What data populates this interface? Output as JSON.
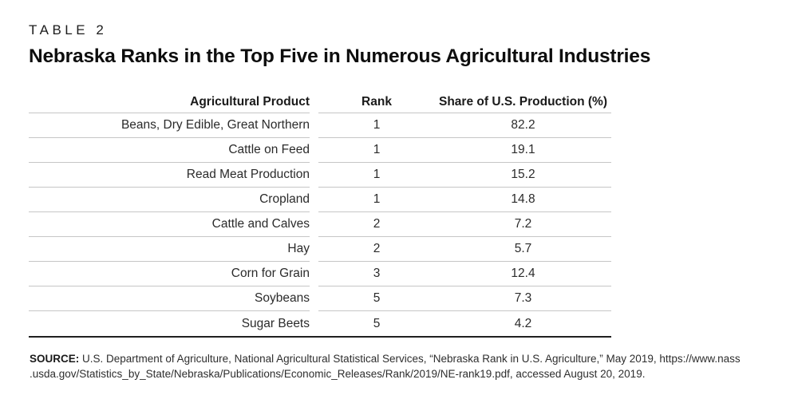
{
  "chart_data": {
    "type": "table",
    "label": "TABLE 2",
    "title": "Nebraska Ranks in the Top Five in Numerous Agricultural Industries",
    "columns": [
      "Agricultural Product",
      "Rank",
      "Share of U.S. Production (%)"
    ],
    "rows": [
      {
        "product": "Beans, Dry Edible, Great Northern",
        "rank": "1",
        "share": "82.2"
      },
      {
        "product": "Cattle on Feed",
        "rank": "1",
        "share": "19.1"
      },
      {
        "product": "Read Meat Production",
        "rank": "1",
        "share": "15.2"
      },
      {
        "product": "Cropland",
        "rank": "1",
        "share": "14.8"
      },
      {
        "product": "Cattle and Calves",
        "rank": "2",
        "share": "7.2"
      },
      {
        "product": "Hay",
        "rank": "2",
        "share": "5.7"
      },
      {
        "product": "Corn for Grain",
        "rank": "3",
        "share": "12.4"
      },
      {
        "product": "Soybeans",
        "rank": "5",
        "share": "7.3"
      },
      {
        "product": "Sugar Beets",
        "rank": "5",
        "share": "4.2"
      }
    ],
    "source": {
      "label": "SOURCE:",
      "line1": "U.S. Department of Agriculture, National Agricultural Statistical Services, “Nebraska Rank in U.S. Agriculture,” May 2019, https://www.nass",
      "line2": ".usda.gov/Statistics_by_State/Nebraska/Publications/Economic_Releases/Rank/2019/NE-rank19.pdf, accessed August 20, 2019."
    },
    "layout": {
      "first_column_align": "right",
      "value_columns_align": "center",
      "grid": "horizontal-rules-only"
    },
    "colors": {
      "text": "#231f20",
      "rule_light": "#c6c6c6",
      "rule_heavy": "#1f1f1f",
      "background": "#ffffff"
    }
  }
}
